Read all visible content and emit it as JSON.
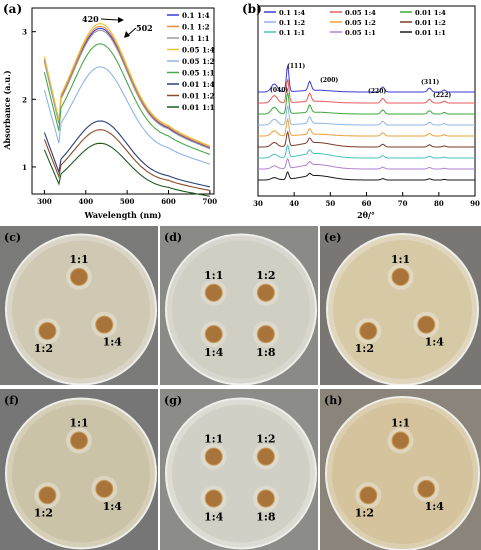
{
  "panel_a": {
    "letter": "(a)",
    "ylabel": "Absorbance (a.u.)",
    "xlabel": "Wavelength (nm)",
    "annot_420": "420",
    "annot_502": "502",
    "x_ticks": [
      "300",
      "400",
      "500",
      "600",
      "700"
    ],
    "y_ticks": [
      "1",
      "2",
      "3"
    ],
    "legend": [
      {
        "label": "0.1  1:4",
        "color": "#3a3ad6"
      },
      {
        "label": "0.1  1:2",
        "color": "#f08a3a"
      },
      {
        "label": "0.1  1:1",
        "color": "#9a9a9a"
      },
      {
        "label": "0.05 1:4",
        "color": "#e8c23a"
      },
      {
        "label": "0.05 1:2",
        "color": "#8fb6e6"
      },
      {
        "label": "0.05 1:1",
        "color": "#4aa84a"
      },
      {
        "label": "0.01 1:4",
        "color": "#2a3f7a"
      },
      {
        "label": "0.01 1:2",
        "color": "#8b4a2a"
      },
      {
        "label": "0.01 1:1",
        "color": "#1f5a1f"
      }
    ]
  },
  "panel_b": {
    "letter": "(b)",
    "xlabel": "2θ/°",
    "x_ticks": [
      "30",
      "40",
      "50",
      "60",
      "70",
      "80",
      "90"
    ],
    "peaks": [
      "(040)",
      "(111)",
      "(200)",
      "(220)",
      "(311)",
      "(222)"
    ],
    "legend": [
      {
        "label": "0.1  1:4",
        "color": "#3a3ad6"
      },
      {
        "label": "0.05 1:4",
        "color": "#e85a5a"
      },
      {
        "label": "0.01 1:4",
        "color": "#3aa83a"
      },
      {
        "label": "0.1  1:2",
        "color": "#8fb6e6"
      },
      {
        "label": "0.05 1:2",
        "color": "#e8a23a"
      },
      {
        "label": "0.01 1:2",
        "color": "#7a3a2a"
      },
      {
        "label": "0.1  1:1",
        "color": "#4ac0c0"
      },
      {
        "label": "0.05 1:1",
        "color": "#b080d0"
      },
      {
        "label": "0.01 1:1",
        "color": "#1a1a1a"
      }
    ]
  },
  "plates": [
    {
      "letter": "(c)",
      "labels": [
        "1:1",
        "1:2",
        "1:4"
      ]
    },
    {
      "letter": "(d)",
      "labels": [
        "1:1",
        "1:2",
        "1:4",
        "1:8"
      ]
    },
    {
      "letter": "(e)",
      "labels": [
        "1:1",
        "1:2",
        "1:4"
      ]
    },
    {
      "letter": "(f)",
      "labels": [
        "1:1",
        "1:2",
        "1:4"
      ]
    },
    {
      "letter": "(g)",
      "labels": [
        "1:1",
        "1:2",
        "1:4",
        "1:8"
      ]
    },
    {
      "letter": "(h)",
      "labels": [
        "1:1",
        "1:2",
        "1:4"
      ]
    }
  ]
}
